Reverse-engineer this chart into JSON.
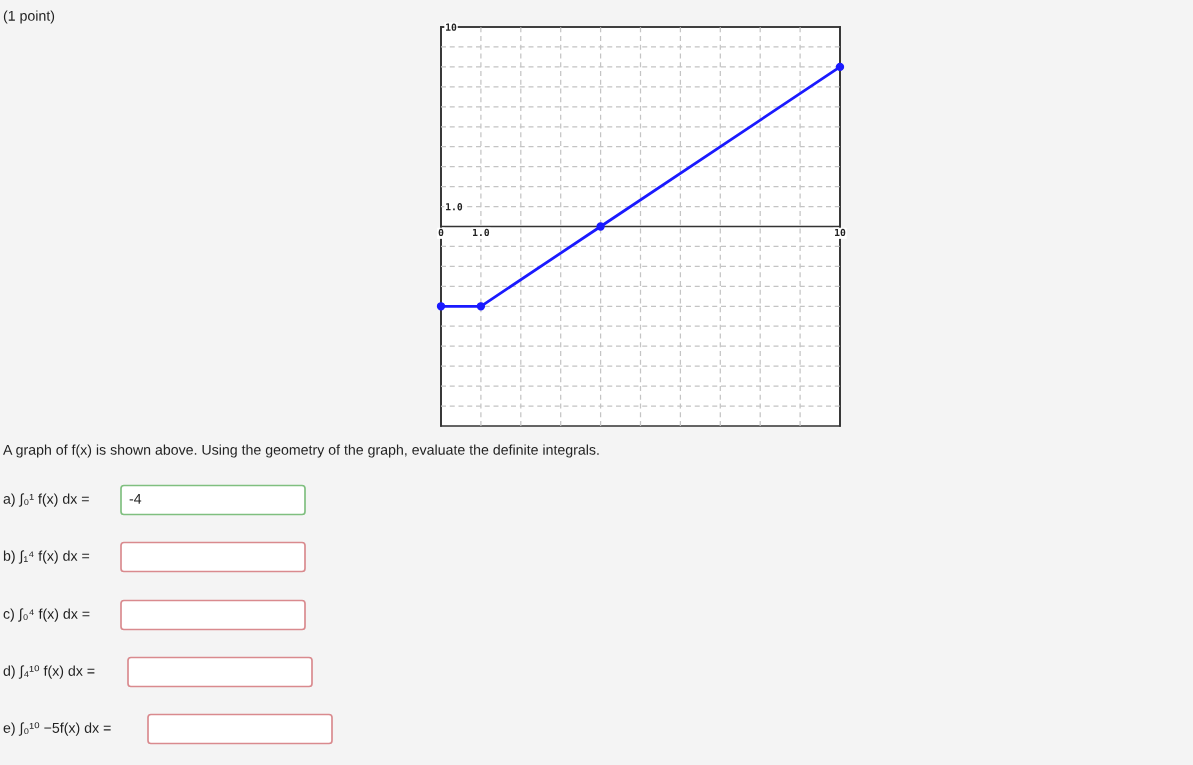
{
  "chart_data": {
    "type": "line",
    "series": [
      {
        "x": [
          0,
          1,
          4,
          10
        ],
        "values": [
          -4,
          -4,
          0,
          8
        ],
        "color": "#1a1aff"
      }
    ],
    "marker": "circle",
    "line_style": "solid",
    "xlim": [
      0,
      10
    ],
    "ylim": [
      -10,
      10
    ],
    "xticks": [
      0,
      {
        "value": 1,
        "label": "1.0"
      },
      {
        "value": 2,
        "label": null
      },
      {
        "value": 3,
        "label": null
      },
      {
        "value": 4,
        "label": null
      },
      {
        "value": 5,
        "label": null
      },
      {
        "value": 6,
        "label": null
      },
      {
        "value": 7,
        "label": null
      },
      {
        "value": 8,
        "label": null
      },
      {
        "value": 9,
        "label": null
      },
      10
    ],
    "yticks": [
      {
        "value": -10,
        "label": null
      },
      {
        "value": -9,
        "label": null
      },
      {
        "value": -8,
        "label": null
      },
      {
        "value": -7,
        "label": null
      },
      {
        "value": -6,
        "label": null
      },
      {
        "value": -5,
        "label": null
      },
      {
        "value": -4,
        "label": null
      },
      {
        "value": -3,
        "label": null
      },
      {
        "value": -2,
        "label": null
      },
      {
        "value": -1,
        "label": null
      },
      {
        "value": 0,
        "label": null
      },
      {
        "value": 1,
        "label": "1.0"
      },
      {
        "value": 2,
        "label": null
      },
      {
        "value": 3,
        "label": null
      },
      {
        "value": 4,
        "label": null
      },
      {
        "value": 5,
        "label": null
      },
      {
        "value": 6,
        "label": null
      },
      {
        "value": 7,
        "label": null
      },
      {
        "value": 8,
        "label": null
      },
      {
        "value": 9,
        "label": null
      },
      10
    ],
    "grid": true,
    "annotations": [
      "(1 point)",
      "A graph of f(x) is shown above. Using the geometry of the graph, evaluate the definite integrals.",
      "a) ∫₀¹ f(x) dx =",
      "-4",
      "b) ∫₁⁴ f(x) dx =",
      "c) ∫₀⁴ f(x) dx =",
      "d) ∫₄¹⁰ f(x) dx =",
      "e) ∫₀¹⁰ −5f(x) dx ="
    ]
  }
}
